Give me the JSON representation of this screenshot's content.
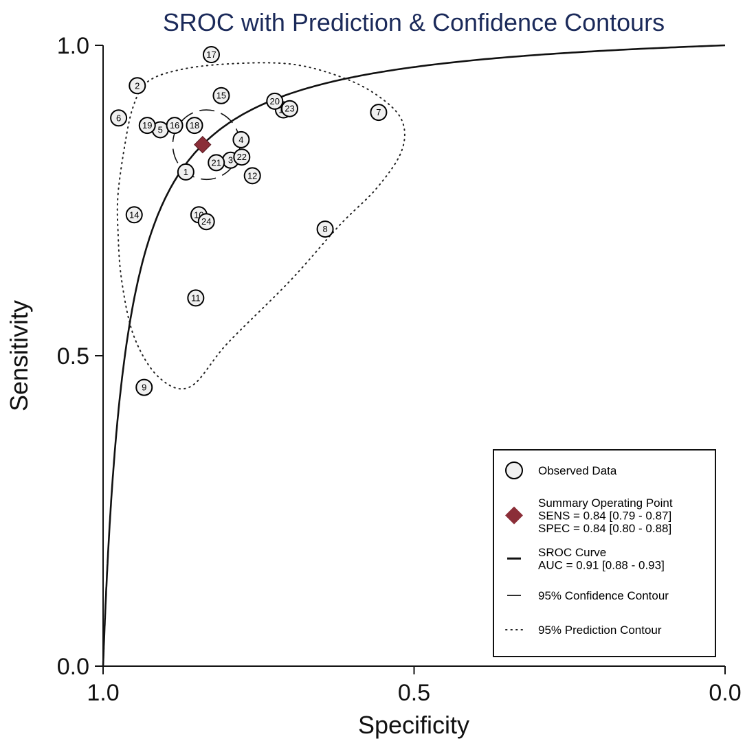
{
  "chart_data": {
    "type": "scatter",
    "title": "SROC with Prediction & Confidence Contours",
    "xlabel": "Specificity",
    "ylabel": "Sensitivity",
    "xlim": [
      1.0,
      0.0
    ],
    "ylim": [
      0.0,
      1.0
    ],
    "x_reversed": true,
    "x_ticks": [
      "1.0",
      "0.5",
      "0.0"
    ],
    "y_ticks": [
      "0.0",
      "0.5",
      "1.0"
    ],
    "grid": false,
    "legend_position": "bottom-right",
    "colors": {
      "summary_point": "#8b2e38",
      "marker_fill": "#f0f0f0",
      "title": "#1b2a5a"
    },
    "studies": [
      {
        "label": "1",
        "spec": 0.867,
        "sens": 0.796
      },
      {
        "label": "2",
        "spec": 0.945,
        "sens": 0.935
      },
      {
        "label": "3",
        "spec": 0.795,
        "sens": 0.815
      },
      {
        "label": "4",
        "spec": 0.778,
        "sens": 0.848
      },
      {
        "label": "5",
        "spec": 0.908,
        "sens": 0.864
      },
      {
        "label": "6",
        "spec": 0.975,
        "sens": 0.883
      },
      {
        "label": "7",
        "spec": 0.557,
        "sens": 0.892
      },
      {
        "label": "8",
        "spec": 0.643,
        "sens": 0.704
      },
      {
        "label": "9",
        "spec": 0.934,
        "sens": 0.449
      },
      {
        "label": "10",
        "spec": 0.846,
        "sens": 0.727
      },
      {
        "label": "11",
        "spec": 0.851,
        "sens": 0.593
      },
      {
        "label": "12",
        "spec": 0.76,
        "sens": 0.79
      },
      {
        "label": "13",
        "spec": 0.71,
        "sens": 0.896
      },
      {
        "label": "14",
        "spec": 0.95,
        "sens": 0.727
      },
      {
        "label": "15",
        "spec": 0.81,
        "sens": 0.919
      },
      {
        "label": "16",
        "spec": 0.885,
        "sens": 0.871
      },
      {
        "label": "17",
        "spec": 0.826,
        "sens": 0.985
      },
      {
        "label": "18",
        "spec": 0.853,
        "sens": 0.871
      },
      {
        "label": "19",
        "spec": 0.929,
        "sens": 0.871
      },
      {
        "label": "20",
        "spec": 0.724,
        "sens": 0.91
      },
      {
        "label": "21",
        "spec": 0.818,
        "sens": 0.811
      },
      {
        "label": "22",
        "spec": 0.777,
        "sens": 0.82
      },
      {
        "label": "23",
        "spec": 0.7,
        "sens": 0.898
      },
      {
        "label": "24",
        "spec": 0.834,
        "sens": 0.716
      }
    ],
    "summary_point": {
      "spec": 0.84,
      "sens": 0.84
    },
    "sroc_curve": {
      "auc_text": "AUC = 0.91 [0.88 - 0.93]"
    },
    "confidence_contour": {
      "center": [
        0.834,
        0.84
      ],
      "half_width": 0.054,
      "half_height": 0.056
    },
    "prediction_contour": [
      [
        0.976,
        0.76
      ],
      [
        0.965,
        0.84
      ],
      [
        0.952,
        0.9
      ],
      [
        0.93,
        0.94
      ],
      [
        0.88,
        0.96
      ],
      [
        0.8,
        0.97
      ],
      [
        0.7,
        0.97
      ],
      [
        0.62,
        0.95
      ],
      [
        0.56,
        0.92
      ],
      [
        0.52,
        0.88
      ],
      [
        0.52,
        0.83
      ],
      [
        0.56,
        0.77
      ],
      [
        0.62,
        0.71
      ],
      [
        0.7,
        0.62
      ],
      [
        0.8,
        0.52
      ],
      [
        0.86,
        0.45
      ],
      [
        0.91,
        0.465
      ],
      [
        0.95,
        0.53
      ],
      [
        0.97,
        0.62
      ],
      [
        0.976,
        0.7
      ]
    ],
    "legend": [
      {
        "key": "observed",
        "lines": [
          "Observed Data"
        ]
      },
      {
        "key": "summary",
        "lines": [
          "Summary Operating Point",
          "SENS = 0.84 [0.79 - 0.87]",
          "SPEC = 0.84 [0.80 - 0.88]"
        ]
      },
      {
        "key": "sroc",
        "lines": [
          "SROC Curve",
          "AUC = 0.91 [0.88 - 0.93]"
        ]
      },
      {
        "key": "confidence",
        "lines": [
          "95% Confidence Contour"
        ]
      },
      {
        "key": "prediction",
        "lines": [
          "95% Prediction Contour"
        ]
      }
    ]
  }
}
